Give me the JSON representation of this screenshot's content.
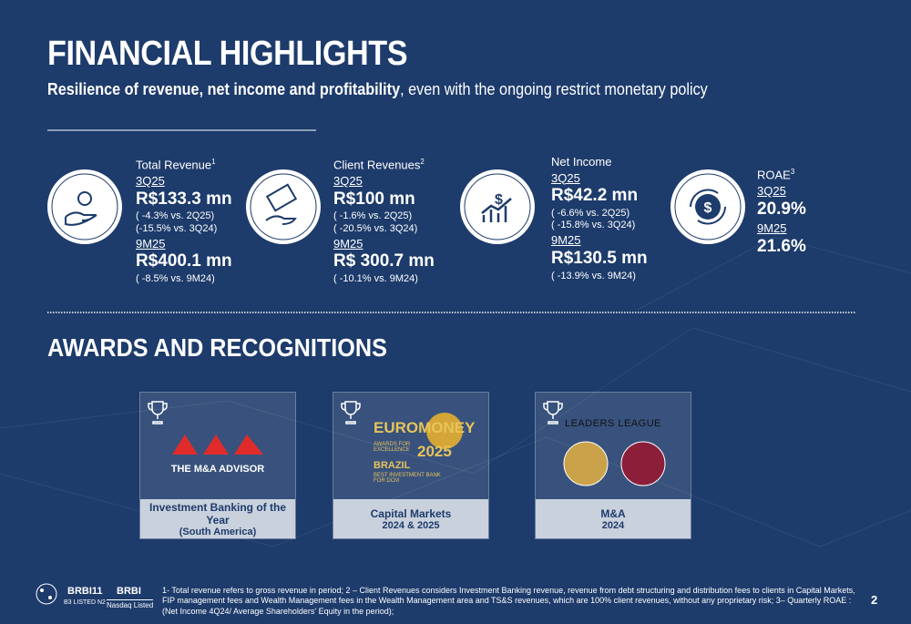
{
  "header": {
    "title": "FINANCIAL HIGHLIGHTS",
    "subtitle_bold": "Resilience of revenue, net income and profitability",
    "subtitle_rest": ", even with the ongoing restrict monetary policy"
  },
  "metrics": [
    {
      "label": "Total Revenue",
      "note": "1",
      "period1": "3Q25",
      "value1": "R$133.3 mn",
      "details1": [
        "( -4.3% vs. 2Q25)",
        "(-15.5% vs. 3Q24)"
      ],
      "period2": "9M25",
      "value2": "R$400.1 mn",
      "details2": [
        "( -8.5% vs. 9M24)"
      ]
    },
    {
      "label": "Client Revenues",
      "note": "2",
      "period1": "3Q25",
      "value1": "R$100 mn",
      "details1": [
        "( -1.6% vs. 2Q25)",
        "( -20.5% vs. 3Q24)"
      ],
      "period2": "9M25",
      "value2": "R$ 300.7 mn",
      "details2": [
        "( -10.1% vs. 9M24)"
      ]
    },
    {
      "label": "Net Income",
      "period1": "3Q25",
      "value1": "R$42.2 mn",
      "details1": [
        "( -6.6% vs. 2Q25)",
        "( -15.8% vs. 3Q24)"
      ],
      "period2": "9M25",
      "value2": "R$130.5 mn",
      "details2": [
        "( -13.9% vs. 9M24)"
      ]
    },
    {
      "label": "ROAE",
      "note": "3",
      "period1": "3Q25",
      "value1": "20.9%",
      "details1": [],
      "period2": "9M25",
      "value2": "21.6%",
      "details2": []
    }
  ],
  "awards": {
    "title": "AWARDS AND RECOGNITIONS",
    "items": [
      {
        "logo": [
          "THE M&A ADVISOR"
        ],
        "caption": [
          "Investment Banking of the Year",
          "(South America)"
        ]
      },
      {
        "logo": [
          "EUROMONEY",
          "AWARDS FOR EXCELLENCE",
          "2025",
          "BRAZIL",
          "BEST INVESTMENT BANK FOR DCM"
        ],
        "caption": [
          "Capital Markets",
          "2024 & 2025"
        ]
      },
      {
        "logo": [
          "LEADERS LEAGUE"
        ],
        "caption": [
          "M&A",
          "2024"
        ]
      }
    ]
  },
  "footer": {
    "ticker": "BRBI11",
    "ticker_sub": "B3 LISTED N2",
    "nasdaq": "BRBI",
    "nasdaq_sub": "Nasdaq Listed",
    "footnote": "1- Total revenue refers to gross revenue in period; 2 – Client Revenues considers Investment Banking revenue, revenue from debt structuring and distribution fees to clients in Capital Markets, FIP management fees and Wealth Management fees in the Wealth Management area and TS&S revenues, which are 100% client revenues, without any proprietary risk; 3– Quarterly ROAE : (Net Income 4Q24/ Average Shareholders' Equity in the period);",
    "page": "2"
  }
}
